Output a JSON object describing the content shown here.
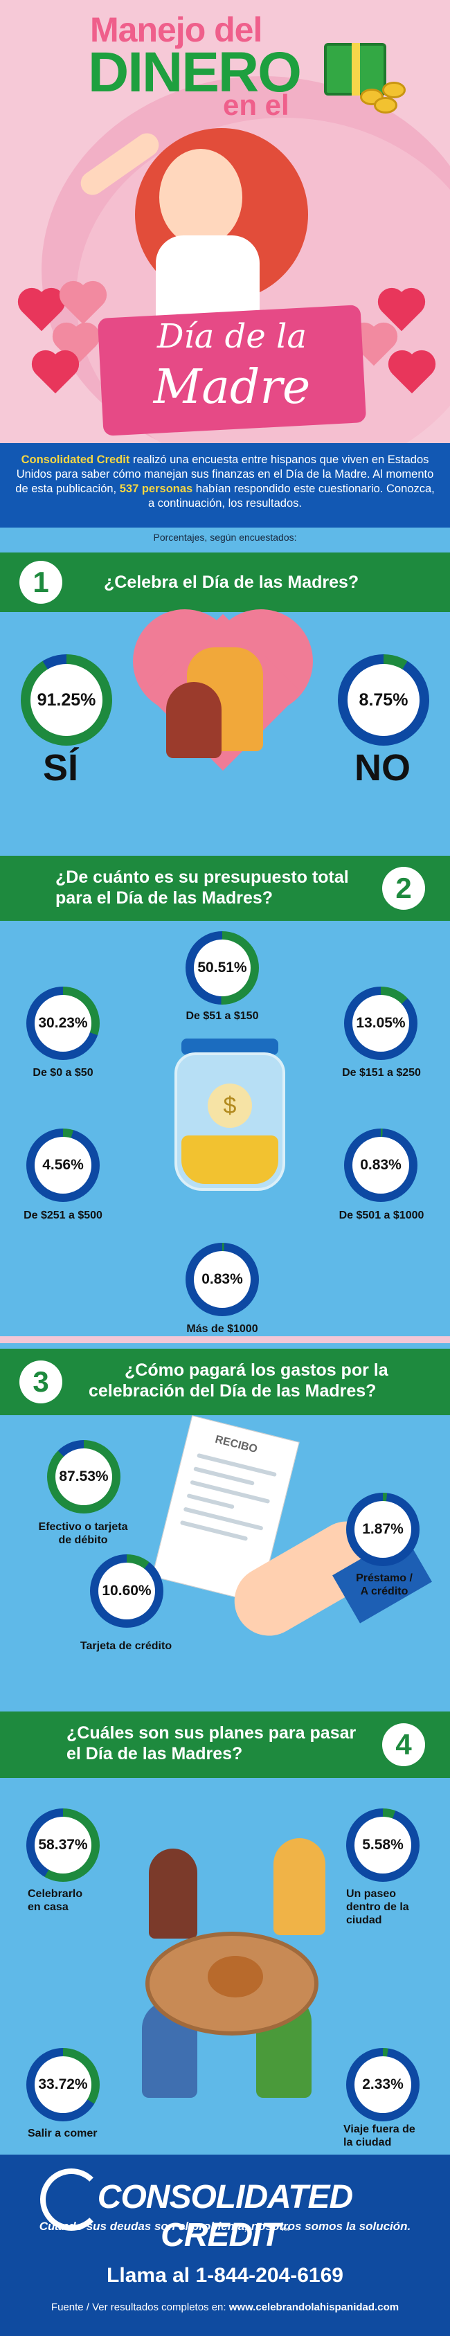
{
  "hero": {
    "title_line1": "Manejo del",
    "title_line2": "DINERO",
    "title_line3": "en el",
    "ribbon_line1": "Día de la",
    "ribbon_line2": "Madre"
  },
  "intro": {
    "brand": "Consolidated Credit",
    "text_a": " realizó una encuesta entre hispanos que viven en Estados Unidos para saber cómo manejan sus finanzas en el Día de la Madre. Al momento de esta publicación, ",
    "count": "537 personas",
    "text_b": " habían respondido este cuestionario. Conozca, a continuación, los resultados."
  },
  "pct_note": "Porcentajes, según encuestados:",
  "q1": {
    "number": "1",
    "question": "¿Celebra el Día de las Madres?",
    "yes": {
      "value": "91.25%",
      "pct": 91.25,
      "label": "SÍ"
    },
    "no": {
      "value": "8.75%",
      "pct": 8.75,
      "label": "NO"
    }
  },
  "q2": {
    "number": "2",
    "question_l1": "¿De cuánto es su presupuesto total",
    "question_l2": "para el Día de las Madres?",
    "items": [
      {
        "value": "50.51%",
        "pct": 50.51,
        "label": "De $51 a $150"
      },
      {
        "value": "30.23%",
        "pct": 30.23,
        "label": "De $0 a $50"
      },
      {
        "value": "13.05%",
        "pct": 13.05,
        "label": "De $151 a $250"
      },
      {
        "value": "4.56%",
        "pct": 4.56,
        "label": "De $251 a $500"
      },
      {
        "value": "0.83%",
        "pct": 0.83,
        "label": "De $501 a $1000"
      },
      {
        "value": "0.83%",
        "pct": 0.83,
        "label": "Más de $1000"
      }
    ],
    "jar_symbol": "$"
  },
  "q3": {
    "number": "3",
    "question_l1": "¿Cómo pagará los gastos por la",
    "question_l2": "celebración del Día de las Madres?",
    "items": [
      {
        "value": "87.53%",
        "pct": 87.53,
        "label_l1": "Efectivo o tarjeta",
        "label_l2": "de débito"
      },
      {
        "value": "1.87%",
        "pct": 1.87,
        "label_l1": "Préstamo /",
        "label_l2": "A crédito"
      },
      {
        "value": "10.60%",
        "pct": 10.6,
        "label_l1": "Tarjeta de crédito",
        "label_l2": ""
      }
    ],
    "receipt_title": "RECIBO"
  },
  "q4": {
    "number": "4",
    "question_l1": "¿Cuáles son sus planes para pasar",
    "question_l2": "el Día de las Madres?",
    "items": [
      {
        "value": "58.37%",
        "pct": 58.37,
        "label_l1": "Celebrarlo",
        "label_l2": "en casa",
        "label_l3": ""
      },
      {
        "value": "5.58%",
        "pct": 5.58,
        "label_l1": "Un paseo",
        "label_l2": "dentro de la",
        "label_l3": "ciudad"
      },
      {
        "value": "33.72%",
        "pct": 33.72,
        "label_l1": "Salir a comer",
        "label_l2": "",
        "label_l3": ""
      },
      {
        "value": "2.33%",
        "pct": 2.33,
        "label_l1": "Viaje fuera de",
        "label_l2": "la ciudad",
        "label_l3": ""
      }
    ]
  },
  "footer": {
    "logo": "CONSOLIDATED CREDIT",
    "tm": "™",
    "tagline": "Cuando sus deudas son el problema, nosotros somos la solución.",
    "phone": "Llama al 1-844-204-6169",
    "source_prefix": "Fuente / Ver resultados completos en: ",
    "source_url": "www.celebrandolahispanidad.com"
  },
  "colors": {
    "green": "#1e8a3e",
    "blue": "#0d49a3",
    "sky": "#5fb9e8",
    "pink": "#f6c9d7"
  }
}
